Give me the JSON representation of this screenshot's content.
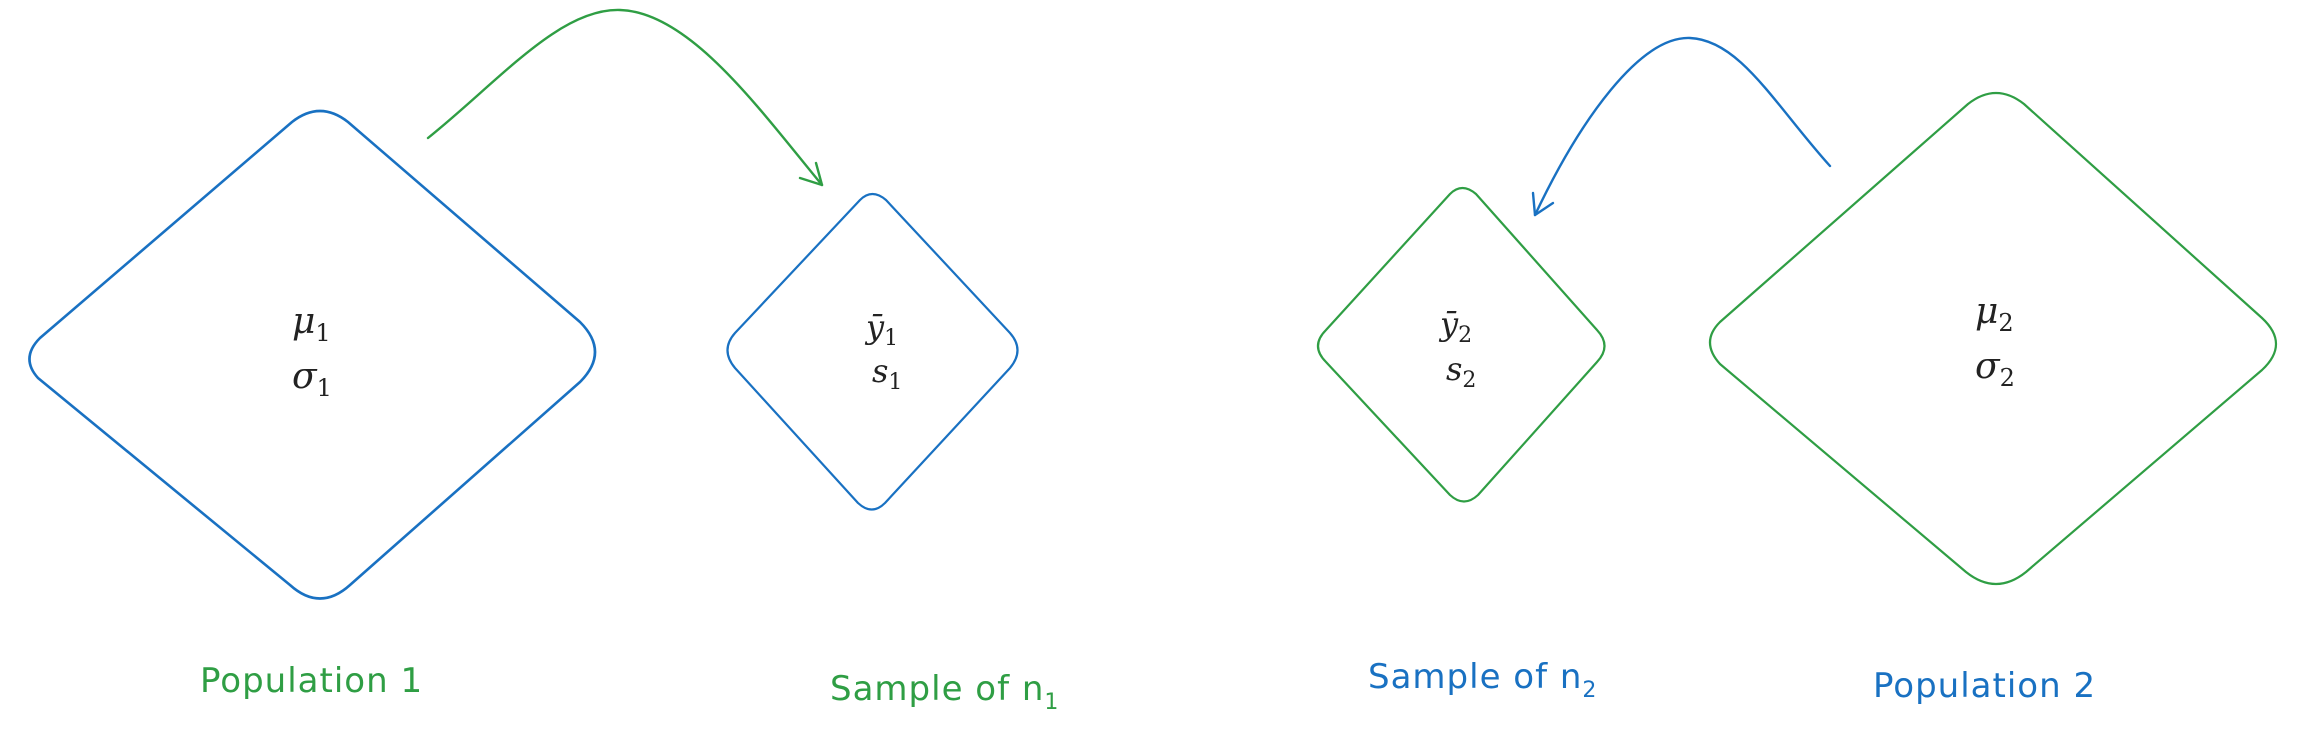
{
  "colors": {
    "blue": "#1971c2",
    "green": "#2f9e44",
    "text": "#222222"
  },
  "population1": {
    "mean_symbol": "μ",
    "mean_sub": "1",
    "sd_symbol": "σ",
    "sd_sub": "1",
    "caption": "Population 1"
  },
  "sample1": {
    "mean_symbol": "ȳ",
    "mean_sub": "1",
    "sd_symbol": "s",
    "sd_sub": "1",
    "caption_text": "Sample of n",
    "caption_sub": "1"
  },
  "sample2": {
    "mean_symbol": "ȳ",
    "mean_sub": "2",
    "sd_symbol": "s",
    "sd_sub": "2",
    "caption_text": "Sample of n",
    "caption_sub": "2"
  },
  "population2": {
    "mean_symbol": "μ",
    "mean_sub": "2",
    "sd_symbol": "σ",
    "sd_sub": "2",
    "caption": "Population 2"
  }
}
